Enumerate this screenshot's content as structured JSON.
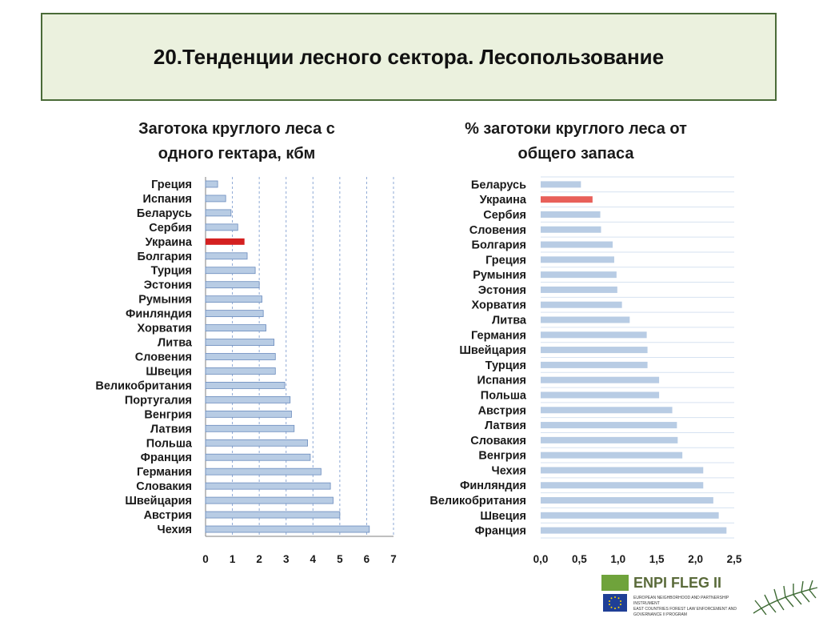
{
  "slide": {
    "title": "20.Тенденции лесного сектора. Лесопользование",
    "logo": {
      "name": "ENPI FLEG II",
      "line1": "EUROPEAN NEIGHBORHOOD AND PARTNERSHIP INSTRUMENT",
      "line2": "EAST COUNTRIES FOREST LAW ENFORCEMENT AND GOVERNANCE II PROGRAM"
    }
  },
  "chart_data": [
    {
      "type": "bar",
      "orientation": "horizontal",
      "title": "Заготока круглого леса с одного гектара, кбм",
      "title_lines": [
        "Заготока круглого леса с",
        "одного гектара, кбм"
      ],
      "categories": [
        "Греция",
        "Испания",
        "Беларусь",
        "Сербия",
        "Украина",
        "Болгария",
        "Турция",
        "Эстония",
        "Румыния",
        "Финляндия",
        "Хорватия",
        "Литва",
        "Словения",
        "Швеция",
        "Великобритания",
        "Португалия",
        "Венгрия",
        "Латвия",
        "Польша",
        "Франция",
        "Германия",
        "Словакия",
        "Швейцария",
        "Австрия",
        "Чехия"
      ],
      "values": [
        0.45,
        0.75,
        0.95,
        1.2,
        1.45,
        1.55,
        1.85,
        2.0,
        2.1,
        2.15,
        2.25,
        2.55,
        2.6,
        2.6,
        2.95,
        3.15,
        3.2,
        3.3,
        3.8,
        3.9,
        4.3,
        4.65,
        4.75,
        5.0,
        6.1
      ],
      "highlight": "Украина",
      "xlim": [
        0,
        7
      ],
      "xticks": [
        "0",
        "1",
        "2",
        "3",
        "4",
        "5",
        "6",
        "7"
      ],
      "grid": "vertical dashed",
      "colors": {
        "bar": "#b8cce4",
        "bar_stroke": "#6a8bbd",
        "highlight": "#d42020",
        "grid": "#8ea9d6"
      }
    },
    {
      "type": "bar",
      "orientation": "horizontal",
      "title": "% заготоки круглого леса от общего запаса",
      "title_lines": [
        "% заготоки круглого леса от",
        "общего запаса"
      ],
      "categories": [
        "Беларусь",
        "Украина",
        "Сербия",
        "Словения",
        "Болгария",
        "Греция",
        "Румыния",
        "Эстония",
        "Хорватия",
        "Литва",
        "Германия",
        "Швейцария",
        "Турция",
        "Испания",
        "Польша",
        "Австрия",
        "Латвия",
        "Словакия",
        "Венгрия",
        "Чехия",
        "Финляндия",
        "Великобритания",
        "Швеция",
        "Франция"
      ],
      "values": [
        0.52,
        0.67,
        0.77,
        0.78,
        0.93,
        0.95,
        0.98,
        0.99,
        1.05,
        1.15,
        1.37,
        1.38,
        1.38,
        1.53,
        1.53,
        1.7,
        1.76,
        1.77,
        1.83,
        2.1,
        2.1,
        2.23,
        2.3,
        2.4
      ],
      "highlight": "Украина",
      "xlim": [
        0,
        2.5
      ],
      "xticks": [
        "0,0",
        "0,5",
        "1,0",
        "1,5",
        "2,0",
        "2,5"
      ],
      "grid": "horizontal",
      "colors": {
        "bar": "#b8cce4",
        "highlight": "#e8605a",
        "grid": "#d6e2f1"
      }
    }
  ]
}
